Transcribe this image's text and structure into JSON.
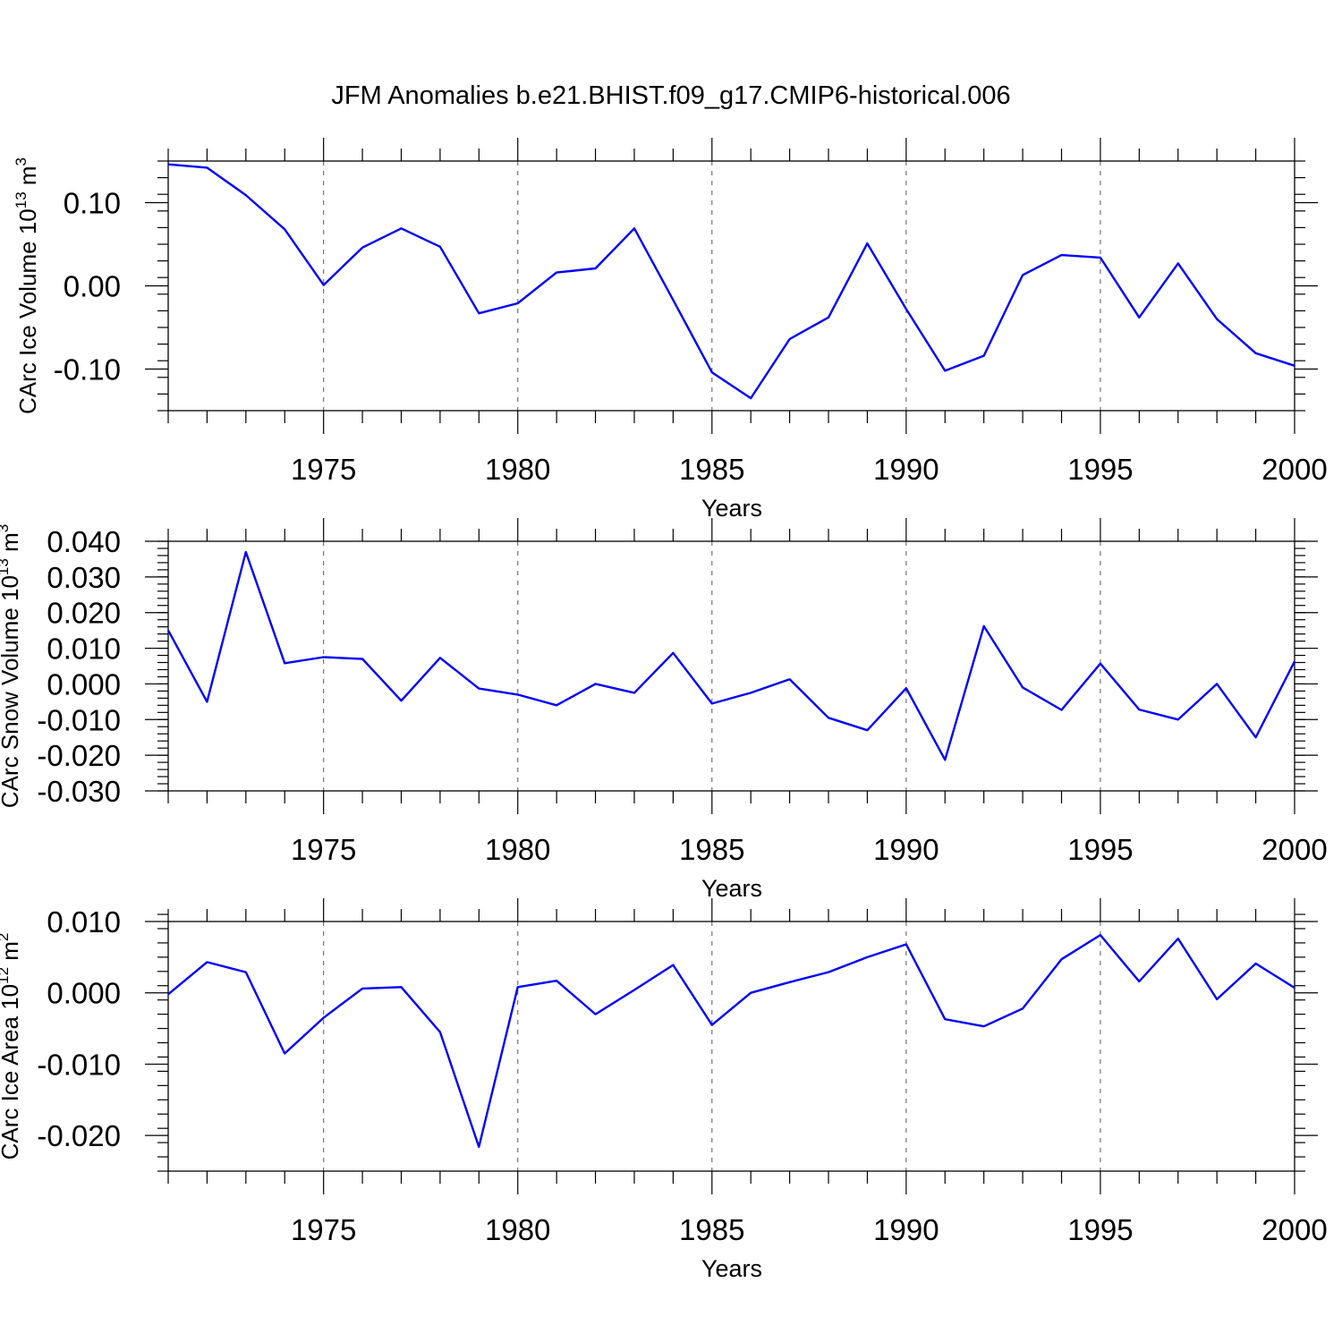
{
  "title": "JFM Anomalies b.e21.BHIST.f09_g17.CMIP6-historical.006",
  "colors": {
    "series": "#0000ff",
    "axes": "#000000",
    "grid": "#666666"
  },
  "chart_data": [
    {
      "type": "line",
      "title": "JFM Anomalies b.e21.BHIST.f09_g17.CMIP6-historical.006",
      "xlabel": "Years",
      "ylabel": {
        "text": "CArc Ice Volume 10",
        "exp": "13",
        "unit": " m",
        "unit_exp": "3"
      },
      "xlim": [
        1971,
        2000
      ],
      "ylim": [
        -0.15,
        0.15
      ],
      "x_ticks": [
        1975,
        1980,
        1985,
        1990,
        1995,
        2000
      ],
      "x_tick_labels": [
        "1975",
        "1980",
        "1985",
        "1990",
        "1995",
        "2000"
      ],
      "y_ticks": [
        0.1,
        0.0,
        -0.1
      ],
      "y_tick_labels": [
        "0.10",
        "0.00",
        "-0.10"
      ],
      "y_minor_step": 0.02,
      "x": [
        1971,
        1972,
        1973,
        1974,
        1975,
        1976,
        1977,
        1978,
        1979,
        1980,
        1981,
        1982,
        1983,
        1984,
        1985,
        1986,
        1987,
        1988,
        1989,
        1990,
        1991,
        1992,
        1993,
        1994,
        1995,
        1996,
        1997,
        1998,
        1999,
        2000
      ],
      "series": [
        {
          "name": "CArc Ice Volume",
          "values": [
            0.146,
            0.142,
            0.109,
            0.068,
            0.001,
            0.046,
            0.069,
            0.047,
            -0.033,
            -0.021,
            0.016,
            0.021,
            0.069,
            -0.017,
            -0.104,
            -0.135,
            -0.064,
            -0.038,
            0.051,
            -0.028,
            -0.102,
            -0.084,
            0.013,
            0.037,
            0.034,
            -0.038,
            0.027,
            -0.04,
            -0.081,
            -0.096
          ]
        }
      ]
    },
    {
      "type": "line",
      "xlabel": "Years",
      "ylabel": {
        "text": "CArc Snow Volume 10",
        "exp": "13",
        "unit": " m",
        "unit_exp": "3"
      },
      "xlim": [
        1971,
        2000
      ],
      "ylim": [
        -0.03,
        0.04
      ],
      "x_ticks": [
        1975,
        1980,
        1985,
        1990,
        1995,
        2000
      ],
      "x_tick_labels": [
        "1975",
        "1980",
        "1985",
        "1990",
        "1995",
        "2000"
      ],
      "y_ticks": [
        0.04,
        0.03,
        0.02,
        0.01,
        0.0,
        -0.01,
        -0.02,
        -0.03
      ],
      "y_tick_labels": [
        "0.040",
        "0.030",
        "0.020",
        "0.010",
        "0.000",
        "-0.010",
        "-0.020",
        "-0.030"
      ],
      "y_minor_step": 0.002,
      "x": [
        1971,
        1972,
        1973,
        1974,
        1975,
        1976,
        1977,
        1978,
        1979,
        1980,
        1981,
        1982,
        1983,
        1984,
        1985,
        1986,
        1987,
        1988,
        1989,
        1990,
        1991,
        1992,
        1993,
        1994,
        1995,
        1996,
        1997,
        1998,
        1999,
        2000
      ],
      "series": [
        {
          "name": "CArc Snow Volume",
          "values": [
            0.015,
            -0.005,
            0.037,
            0.0058,
            0.0075,
            0.007,
            -0.0047,
            0.0073,
            -0.0013,
            -0.003,
            -0.006,
            0.0,
            -0.0025,
            0.0087,
            -0.0055,
            -0.0025,
            0.0013,
            -0.0095,
            -0.013,
            -0.0012,
            -0.0213,
            0.0162,
            -0.001,
            -0.0073,
            0.0057,
            -0.0072,
            -0.01,
            0.0,
            -0.015,
            0.0063
          ]
        }
      ]
    },
    {
      "type": "line",
      "xlabel": "Years",
      "ylabel": {
        "text": "CArc Ice Area 10",
        "exp": "12",
        "unit": " m",
        "unit_exp": "2"
      },
      "xlim": [
        1971,
        2000
      ],
      "ylim": [
        -0.025,
        0.01
      ],
      "x_ticks": [
        1975,
        1980,
        1985,
        1990,
        1995,
        2000
      ],
      "x_tick_labels": [
        "1975",
        "1980",
        "1985",
        "1990",
        "1995",
        "2000"
      ],
      "y_ticks": [
        0.01,
        0.0,
        -0.01,
        -0.02
      ],
      "y_tick_labels": [
        "0.010",
        "0.000",
        "-0.010",
        "-0.020"
      ],
      "y_minor_step": 0.002,
      "x": [
        1971,
        1972,
        1973,
        1974,
        1975,
        1976,
        1977,
        1978,
        1979,
        1980,
        1981,
        1982,
        1983,
        1984,
        1985,
        1986,
        1987,
        1988,
        1989,
        1990,
        1991,
        1992,
        1993,
        1994,
        1995,
        1996,
        1997,
        1998,
        1999,
        2000
      ],
      "series": [
        {
          "name": "CArc Ice Area",
          "values": [
            -0.0002,
            0.0043,
            0.0029,
            -0.0085,
            -0.0035,
            0.0006,
            0.0008,
            -0.0055,
            -0.0216,
            0.0008,
            0.0017,
            -0.003,
            0.0004,
            0.0039,
            -0.0045,
            0.0,
            0.0015,
            0.0029,
            0.005,
            0.0068,
            -0.0037,
            -0.0047,
            -0.0022,
            0.0047,
            0.0081,
            0.0016,
            0.0076,
            -0.0009,
            0.0041,
            0.0007
          ]
        }
      ]
    }
  ]
}
